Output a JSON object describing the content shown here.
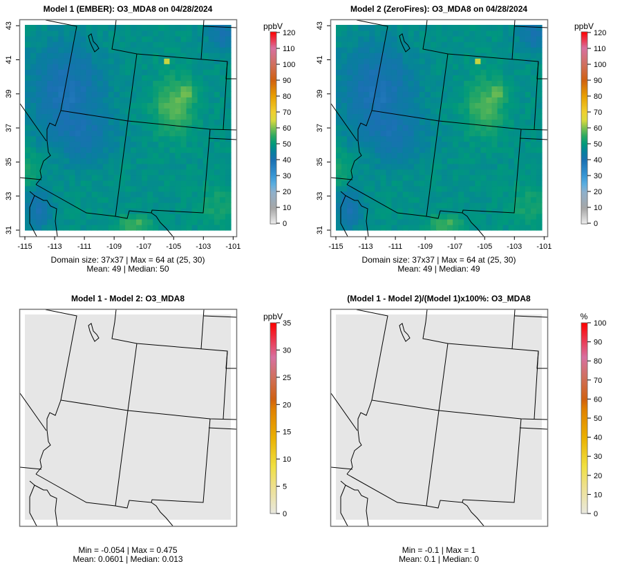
{
  "chart_data": [
    {
      "type": "heatmap",
      "title": "Model 1 (EMBER): O3_MDA8 on 04/28/2024",
      "variable": "O3_MDA8",
      "units": "ppbV",
      "x_ticks": [
        "-115",
        "-113",
        "-111",
        "-109",
        "-107",
        "-105",
        "-103",
        "-101"
      ],
      "y_ticks": [
        "31",
        "33",
        "35",
        "37",
        "39",
        "41",
        "43"
      ],
      "xlim": [
        -115,
        -101
      ],
      "ylim": [
        31,
        43
      ],
      "colorbar_ticks": [
        "0",
        "10",
        "20",
        "30",
        "40",
        "50",
        "60",
        "70",
        "80",
        "90",
        "100",
        "110",
        "120"
      ],
      "colorbar_range": [
        0,
        120
      ],
      "stats_line1": "Domain size: 37x37 | Max = 64 at (25, 30)",
      "stats_line2": "Mean: 49 |  Median: 50",
      "grid_size": [
        37,
        37
      ],
      "max": 64,
      "max_cell": [
        25,
        30
      ],
      "mean": 49,
      "median": 50
    },
    {
      "type": "heatmap",
      "title": "Model 2 (ZeroFires): O3_MDA8 on 04/28/2024",
      "variable": "O3_MDA8",
      "units": "ppbV",
      "x_ticks": [
        "-115",
        "-113",
        "-111",
        "-109",
        "-107",
        "-105",
        "-103",
        "-101"
      ],
      "y_ticks": [
        "31",
        "33",
        "35",
        "37",
        "39",
        "41",
        "43"
      ],
      "xlim": [
        -115,
        -101
      ],
      "ylim": [
        31,
        43
      ],
      "colorbar_ticks": [
        "0",
        "10",
        "20",
        "30",
        "40",
        "50",
        "60",
        "70",
        "80",
        "90",
        "100",
        "110",
        "120"
      ],
      "colorbar_range": [
        0,
        120
      ],
      "stats_line1": "Domain size: 37x37 | Max = 64 at (25, 30)",
      "stats_line2": "Mean: 49 |  Median: 49",
      "grid_size": [
        37,
        37
      ],
      "max": 64,
      "max_cell": [
        25,
        30
      ],
      "mean": 49,
      "median": 49
    },
    {
      "type": "heatmap",
      "title": "Model 1 - Model 2: O3_MDA8",
      "units": "ppbV",
      "colorbar_ticks": [
        "0",
        "5",
        "10",
        "15",
        "20",
        "25",
        "30",
        "35"
      ],
      "colorbar_range": [
        0,
        35
      ],
      "stats_line1": "Min = -0.054 | Max = 0.475",
      "stats_line2": "Mean: 0.0601 |  Median: 0.013",
      "min": -0.054,
      "max": 0.475,
      "mean": 0.0601,
      "median": 0.013
    },
    {
      "type": "heatmap",
      "title": "(Model 1 - Model 2)/(Model 1)x100%: O3_MDA8",
      "units": "%",
      "colorbar_ticks": [
        "0",
        "10",
        "20",
        "30",
        "40",
        "50",
        "60",
        "70",
        "80",
        "90",
        "100"
      ],
      "colorbar_range": [
        0,
        100
      ],
      "stats_line1": "Min = -0.1 | Max = 1",
      "stats_line2": "Mean: 0.1 |  Median: 0",
      "min": -0.1,
      "max": 1,
      "mean": 0.1,
      "median": 0
    }
  ],
  "colors": {
    "frame": "#777777",
    "diff_fill": "#e6e6e6",
    "border": "#000000"
  }
}
